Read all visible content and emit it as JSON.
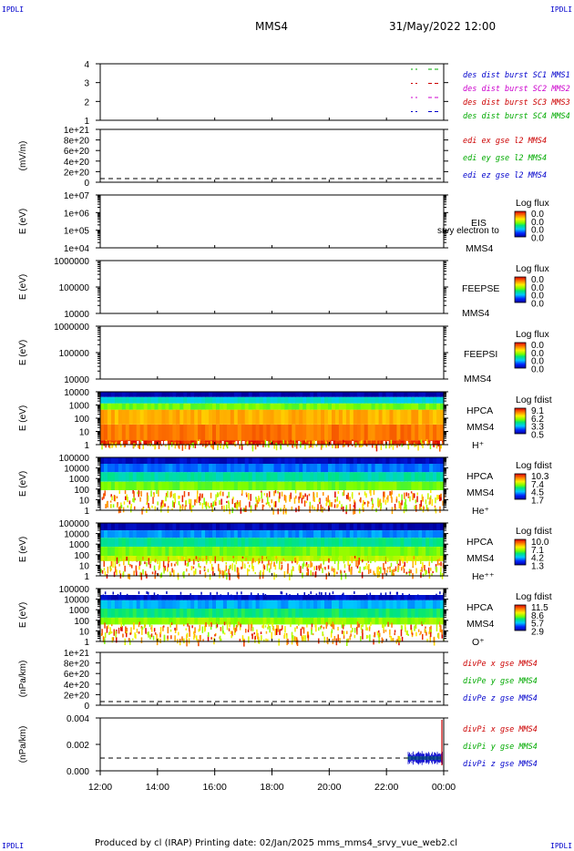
{
  "header": {
    "corner_label": "IPDLI",
    "spacecraft": "MMS4",
    "date": "31/May/2022 12:00"
  },
  "footer": {
    "text": "Produced by cl (IRAP)   Printing date: 02/Jan/2025   mms_mms4_srvy_vue_web2.cl"
  },
  "chart_data": [
    {
      "id": "p1",
      "type": "line",
      "yticks": [
        "4",
        "3",
        "2",
        "1"
      ],
      "ylabel": "",
      "right": [
        {
          "text": "des dist burst SC1 MMS1",
          "color": "#0000cc"
        },
        {
          "text": "des dist burst SC2 MMS2",
          "color": "#cc00cc"
        },
        {
          "text": "des dist burst SC3 MMS3",
          "color": "#cc0000"
        },
        {
          "text": "des dist burst SC4 MMS4",
          "color": "#00aa00"
        }
      ]
    },
    {
      "id": "p2",
      "type": "line",
      "yticks": [
        "1e+21",
        "8e+20",
        "6e+20",
        "4e+20",
        "2e+20",
        "0"
      ],
      "ylabel": "(mV/m)",
      "right": [
        {
          "text": "edi ex gse l2 MMS4",
          "color": "#cc0000"
        },
        {
          "text": "edi ey gse l2 MMS4",
          "color": "#00aa00"
        },
        {
          "text": "edi ez gse l2 MMS4",
          "color": "#0000cc"
        }
      ]
    },
    {
      "id": "p3",
      "type": "heatmap",
      "yticks": [
        "1e+07",
        "1e+06",
        "1e+05",
        "1e+04"
      ],
      "ylabel": "E (eV)",
      "right": [
        {
          "text": "EIS",
          "color": "#000"
        },
        {
          "text": "srvy electron to",
          "color": "#000"
        },
        {
          "text": "MMS4",
          "color": "#000"
        }
      ],
      "colorbar": {
        "title": "Log flux",
        "ticks": [
          "0.0",
          "0.0",
          "0.0",
          "0.0"
        ]
      }
    },
    {
      "id": "p4",
      "type": "heatmap",
      "yticks": [
        "1000000",
        "100000",
        "10000"
      ],
      "ylabel": "E (eV)",
      "right": [
        {
          "text": "FEEPSE",
          "color": "#000"
        },
        {
          "text": "MMS4",
          "color": "#000"
        }
      ],
      "colorbar": {
        "title": "Log flux",
        "ticks": [
          "0.0",
          "0.0",
          "0.0",
          "0.0"
        ]
      }
    },
    {
      "id": "p5",
      "type": "heatmap",
      "yticks": [
        "1000000",
        "100000",
        "10000"
      ],
      "ylabel": "E (eV)",
      "right": [
        {
          "text": "FEEPSI",
          "color": "#000"
        },
        {
          "text": "MMS4",
          "color": "#000"
        }
      ],
      "colorbar": {
        "title": "Log flux",
        "ticks": [
          "0.0",
          "0.0",
          "0.0",
          "0.0"
        ]
      }
    },
    {
      "id": "p6",
      "type": "heatmap",
      "yticks": [
        "10000",
        "1000",
        "100",
        "10",
        "1"
      ],
      "ylabel": "E (eV)",
      "right": [
        {
          "text": "HPCA",
          "color": "#000"
        },
        {
          "text": "MMS4",
          "color": "#000"
        },
        {
          "text": "H⁺",
          "color": "#000"
        }
      ],
      "colorbar": {
        "title": "Log fdist",
        "ticks": [
          "9.1",
          "6.2",
          "3.3",
          "0.5"
        ]
      }
    },
    {
      "id": "p7",
      "type": "heatmap",
      "yticks": [
        "100000",
        "10000",
        "1000",
        "100",
        "10",
        "1"
      ],
      "ylabel": "E (eV)",
      "right": [
        {
          "text": "HPCA",
          "color": "#000"
        },
        {
          "text": "MMS4",
          "color": "#000"
        },
        {
          "text": "He⁺",
          "color": "#000"
        }
      ],
      "colorbar": {
        "title": "Log fdist",
        "ticks": [
          "10.3",
          "7.4",
          "4.5",
          "1.7"
        ]
      }
    },
    {
      "id": "p8",
      "type": "heatmap",
      "yticks": [
        "100000",
        "10000",
        "1000",
        "100",
        "10",
        "1"
      ],
      "ylabel": "E (eV)",
      "right": [
        {
          "text": "HPCA",
          "color": "#000"
        },
        {
          "text": "MMS4",
          "color": "#000"
        },
        {
          "text": "He⁺⁺",
          "color": "#000"
        }
      ],
      "colorbar": {
        "title": "Log fdist",
        "ticks": [
          "10.0",
          "7.1",
          "4.2",
          "1.3"
        ]
      }
    },
    {
      "id": "p9",
      "type": "heatmap",
      "yticks": [
        "100000",
        "10000",
        "1000",
        "100",
        "10",
        "1"
      ],
      "ylabel": "E (eV)",
      "right": [
        {
          "text": "HPCA",
          "color": "#000"
        },
        {
          "text": "MMS4",
          "color": "#000"
        },
        {
          "text": "O⁺",
          "color": "#000"
        }
      ],
      "colorbar": {
        "title": "Log fdist",
        "ticks": [
          "11.5",
          "8.6",
          "5.7",
          "2.9"
        ]
      }
    },
    {
      "id": "p10",
      "type": "line",
      "yticks": [
        "1e+21",
        "8e+20",
        "6e+20",
        "4e+20",
        "2e+20",
        "0"
      ],
      "ylabel": "(nPa/km)",
      "right": [
        {
          "text": "divPe x gse MMS4",
          "color": "#cc0000"
        },
        {
          "text": "divPe y gse MMS4",
          "color": "#00aa00"
        },
        {
          "text": "divPe z gse MMS4",
          "color": "#0000cc"
        }
      ]
    },
    {
      "id": "p11",
      "type": "line",
      "yticks": [
        "0.004",
        "0.002",
        "0.000"
      ],
      "ylabel": "(nPa/km)",
      "right": [
        {
          "text": "divPi x gse MMS4",
          "color": "#cc0000"
        },
        {
          "text": "divPi y gse MMS4",
          "color": "#00aa00"
        },
        {
          "text": "divPi z gse MMS4",
          "color": "#0000cc"
        }
      ]
    }
  ],
  "x_axis": {
    "ticks": [
      "12:00",
      "14:00",
      "16:00",
      "18:00",
      "20:00",
      "22:00",
      "00:00"
    ]
  }
}
